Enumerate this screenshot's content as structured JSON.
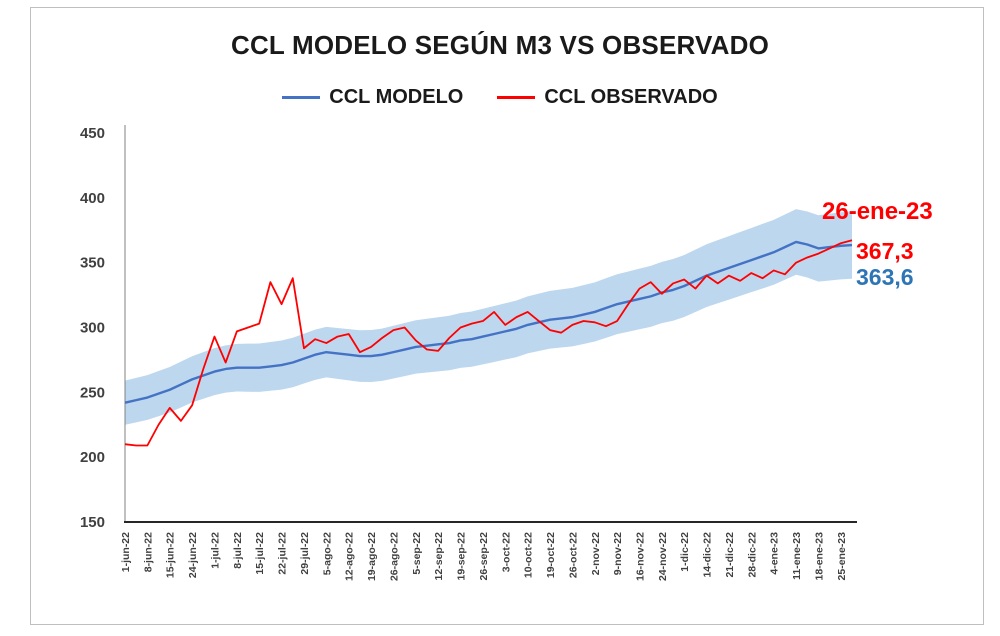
{
  "chart_data": {
    "type": "line",
    "title": "CCL MODELO SEGÚN M3 VS OBSERVADO",
    "legend_position": "top",
    "grid": false,
    "ylim": [
      150,
      450
    ],
    "y_ticks": [
      150,
      200,
      250,
      300,
      350,
      400,
      450
    ],
    "x_tick_labels": [
      "1-jun-22",
      "8-jun-22",
      "15-jun-22",
      "24-jun-22",
      "1-jul-22",
      "8-jul-22",
      "15-jul-22",
      "22-jul-22",
      "29-jul-22",
      "5-ago-22",
      "12-ago-22",
      "19-ago-22",
      "26-ago-22",
      "5-sep-22",
      "12-sep-22",
      "19-sep-22",
      "26-sep-22",
      "3-oct-22",
      "10-oct-22",
      "19-oct-22",
      "26-oct-22",
      "2-nov-22",
      "9-nov-22",
      "16-nov-22",
      "24-nov-22",
      "1-dic-22",
      "14-dic-22",
      "21-dic-22",
      "28-dic-22",
      "4-ene-23",
      "11-ene-23",
      "18-ene-23",
      "25-ene-23"
    ],
    "points_per_tick_interval": 2,
    "series": [
      {
        "name": "CCL MODELO",
        "color": "#4472C4",
        "values": [
          242,
          244,
          246,
          249,
          252,
          256,
          260,
          263,
          266,
          268,
          269,
          269,
          269,
          270,
          271,
          273,
          276,
          279,
          281,
          280,
          279,
          278,
          278,
          279,
          281,
          283,
          285,
          286,
          287,
          288,
          290,
          291,
          293,
          295,
          297,
          299,
          302,
          304,
          306,
          307,
          308,
          310,
          312,
          315,
          318,
          320,
          322,
          324,
          327,
          329,
          332,
          336,
          340,
          343,
          346,
          349,
          352,
          355,
          358,
          362,
          366,
          364,
          361,
          362,
          363,
          363.6
        ]
      },
      {
        "name": "CCL OBSERVADO",
        "color": "#FF0000",
        "values": [
          210,
          209,
          209,
          225,
          238,
          228,
          240,
          268,
          293,
          273,
          297,
          300,
          303,
          335,
          318,
          338,
          284,
          291,
          288,
          293,
          295,
          281,
          285,
          292,
          298,
          300,
          290,
          283,
          282,
          292,
          300,
          303,
          305,
          312,
          302,
          308,
          312,
          305,
          298,
          296,
          302,
          305,
          304,
          301,
          305,
          318,
          330,
          335,
          326,
          334,
          337,
          330,
          340,
          334,
          340,
          336,
          342,
          338,
          344,
          341,
          350,
          354,
          357,
          361,
          365,
          367.3
        ]
      }
    ],
    "band": {
      "label": "model-confidence-band",
      "around": "CCL MODELO",
      "color": "#BDD7EE",
      "halfwidth_start": 17,
      "halfwidth_end": 26
    },
    "annotations": [
      {
        "role": "final-date",
        "text": "26-ene-23",
        "color": "#FF0000"
      },
      {
        "role": "observado-final-value",
        "text": "367,3",
        "color": "#FF0000"
      },
      {
        "role": "modelo-final-value",
        "text": "363,6",
        "color": "#2E75B6"
      }
    ]
  }
}
